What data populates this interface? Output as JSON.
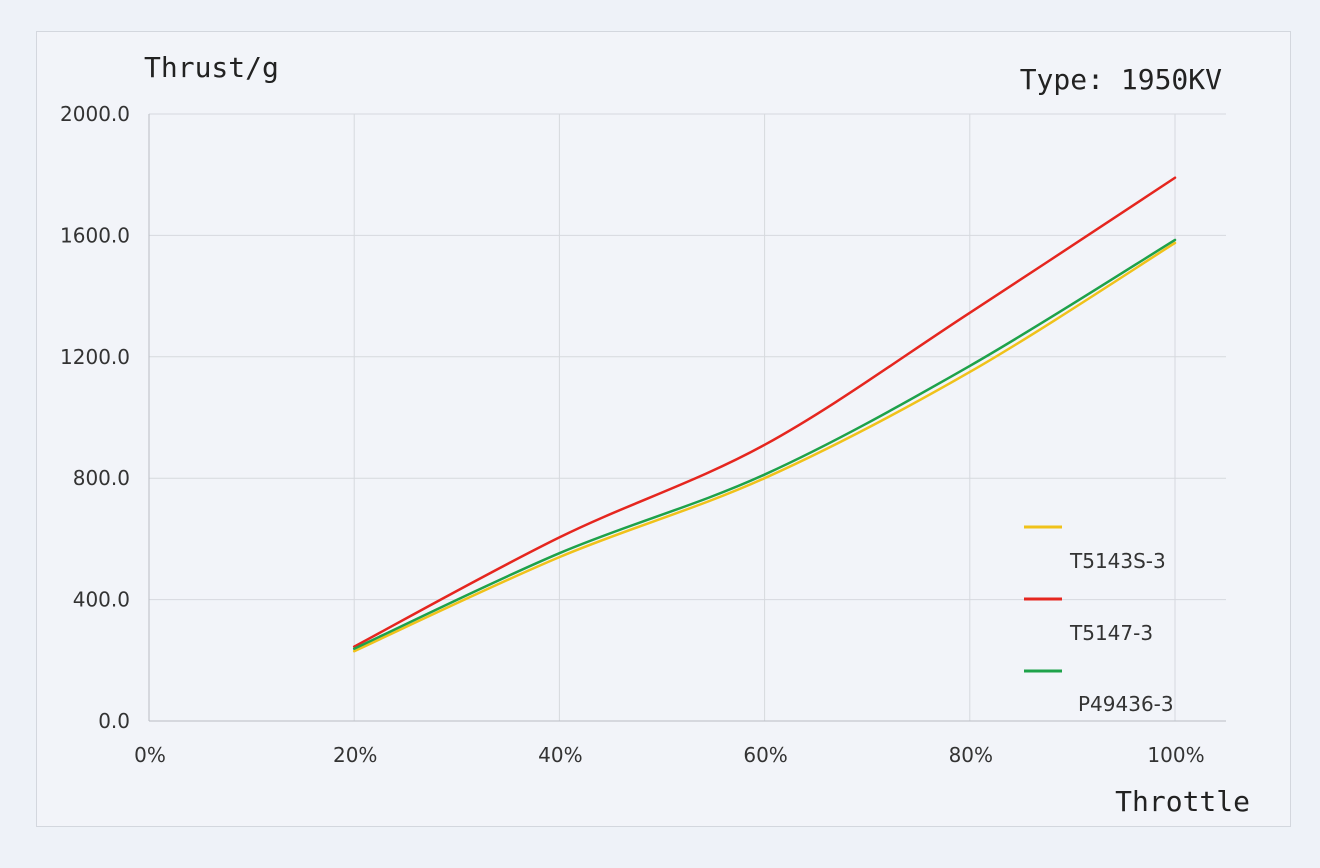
{
  "chart_data": {
    "type": "line",
    "title": "Type: 1950KV",
    "ylabel": "Thrust/g",
    "xlabel": "Throttle",
    "x": [
      0.2,
      0.4,
      0.6,
      0.8,
      1.0
    ],
    "xlim": [
      0,
      1
    ],
    "ylim": [
      0,
      2000
    ],
    "xticks": [
      "0%",
      "20%",
      "40%",
      "60%",
      "80%",
      "100%"
    ],
    "yticks": [
      "0.0",
      "400.0",
      "800.0",
      "1200.0",
      "1600.0",
      "2000.0"
    ],
    "grid": true,
    "legend": "bottom-right",
    "series": [
      {
        "name": "T5143S-3",
        "color": "#f0c21a",
        "values": [
          230,
          540,
          800,
          1150,
          1575
        ]
      },
      {
        "name": "T5147-3",
        "color": "#e5261f",
        "values": [
          245,
          605,
          910,
          1345,
          1790
        ]
      },
      {
        "name": "P49436-3",
        "color": "#1ea24a",
        "values": [
          238,
          553,
          812,
          1170,
          1585
        ]
      }
    ]
  }
}
